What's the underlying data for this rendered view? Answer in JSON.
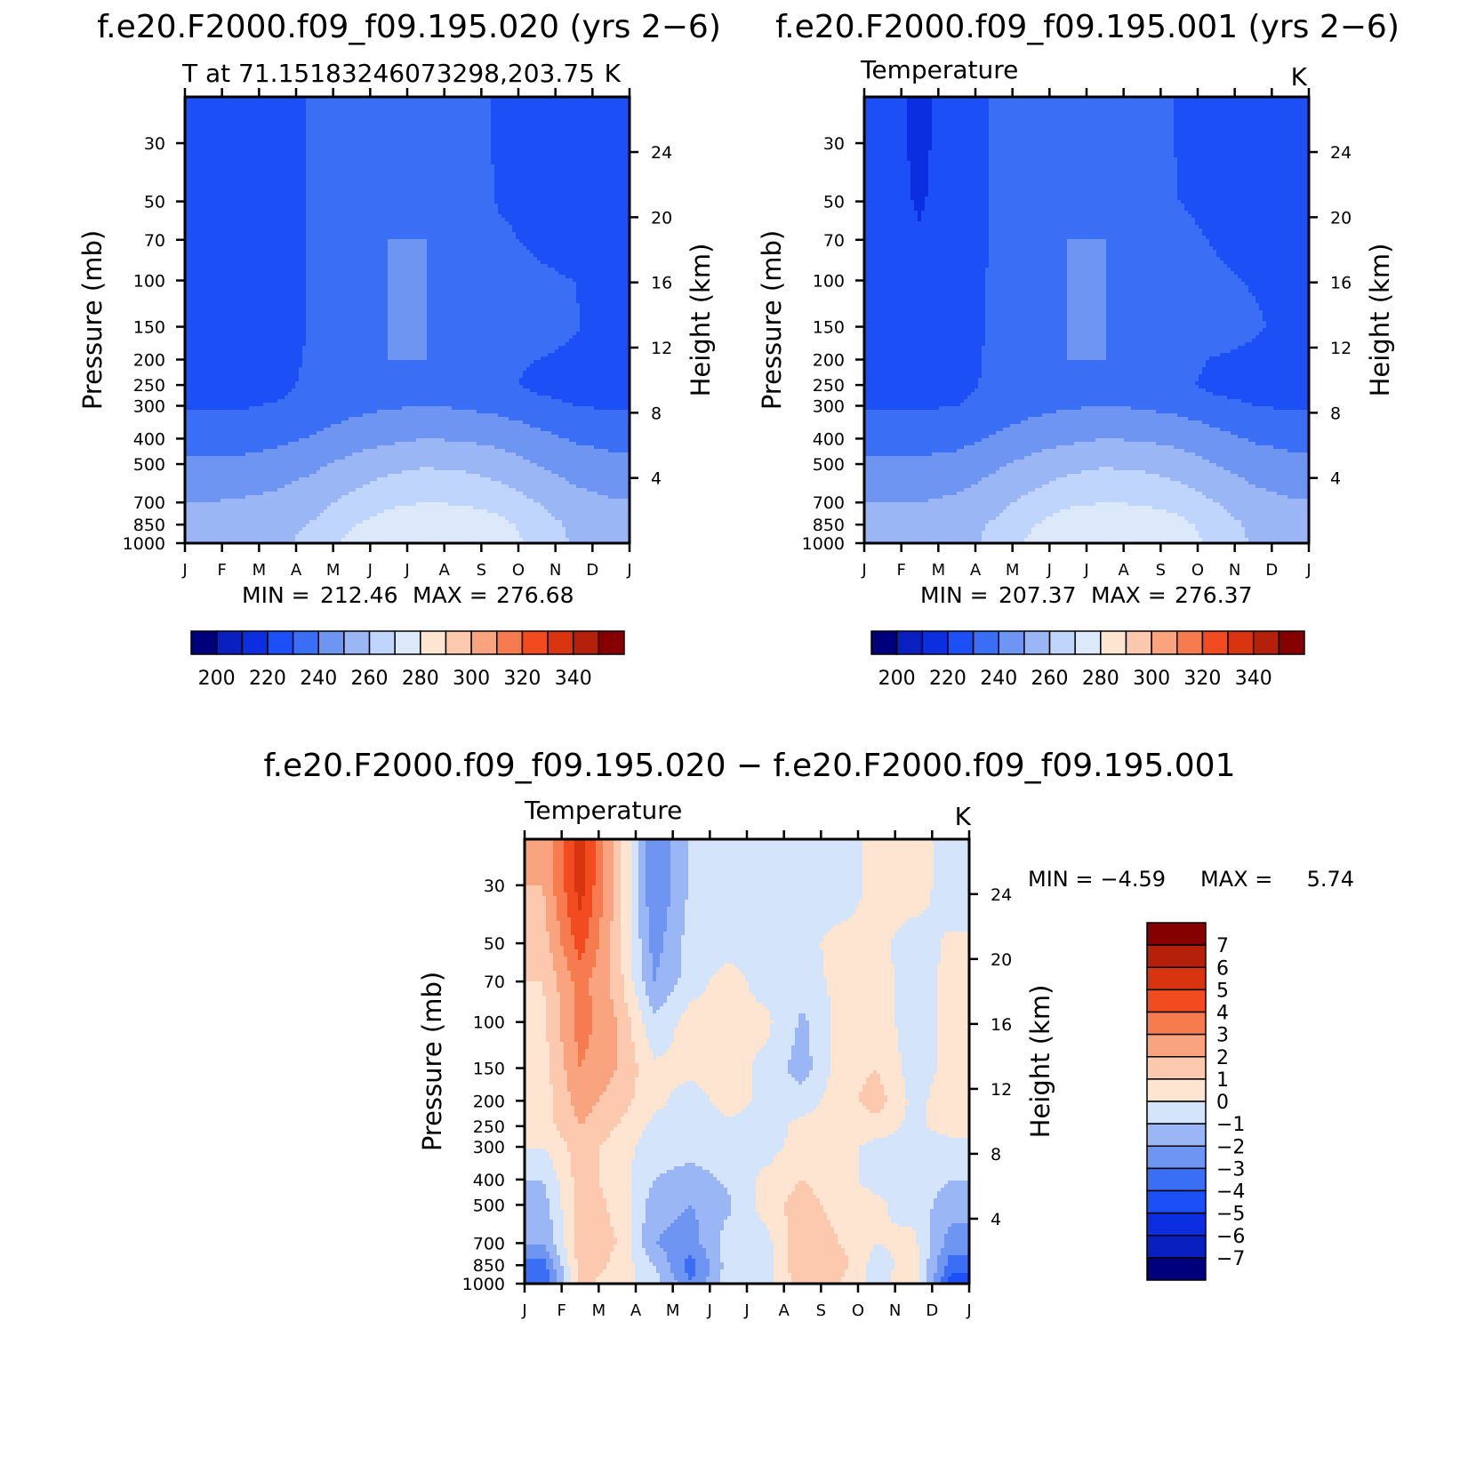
{
  "figure": {
    "panels": [
      {
        "id": "a",
        "title": "f.e20.F2000.f09_f09.195.020 (yrs 2−6)",
        "left_label": "T at 71.15183246073298,203.75",
        "right_label": "K",
        "stats": {
          "min_label": "MIN =",
          "min": "212.46",
          "max_label": "MAX =",
          "max": "276.68"
        }
      },
      {
        "id": "b",
        "title": "f.e20.F2000.f09_f09.195.001 (yrs 2−6)",
        "left_label": "Temperature",
        "right_label": "K",
        "stats": {
          "min_label": "MIN =",
          "min": "207.37",
          "max_label": "MAX =",
          "max": "276.37"
        }
      },
      {
        "id": "c",
        "title": "f.e20.F2000.f09_f09.195.020 − f.e20.F2000.f09_f09.195.001",
        "left_label": "Temperature",
        "right_label": "K",
        "stats": {
          "min_label": "MIN =",
          "min": "−4.59",
          "max_label": "MAX =",
          "max": "5.74"
        }
      }
    ]
  },
  "chart_data": [
    {
      "type": "heatmap",
      "subtype": "filled-contour pressure–time section",
      "title": "f.e20.F2000.f09_f09.195.020 (yrs 2−6)",
      "subtitle": "T at 71.15183246073298,203.75",
      "units": "K",
      "ylabel": "Pressure (mb)",
      "y2label": "Height (km)",
      "x_ticks": [
        "J",
        "F",
        "M",
        "A",
        "M",
        "J",
        "J",
        "A",
        "S",
        "O",
        "N",
        "D",
        "J"
      ],
      "y_ticks": [
        30,
        50,
        70,
        100,
        150,
        200,
        250,
        300,
        400,
        500,
        700,
        850,
        1000
      ],
      "y2_ticks": [
        24,
        20,
        16,
        12,
        8,
        4
      ],
      "ylim": [
        1000,
        20
      ],
      "y_scale": "log",
      "colorbar": {
        "orientation": "horizontal",
        "position": "bottom",
        "labels": [
          200,
          220,
          240,
          260,
          280,
          300,
          320,
          340
        ],
        "levels": [
          195,
          200,
          205,
          210,
          215,
          220,
          225,
          230,
          235,
          240,
          245,
          250,
          255,
          260,
          265,
          270,
          275,
          280,
          285,
          290,
          295,
          300,
          305,
          310,
          315,
          320,
          325,
          330,
          335,
          340,
          345
        ]
      },
      "min": 212.46,
      "max": 276.68,
      "month_columns": [
        "J",
        "F",
        "M",
        "A",
        "M",
        "J",
        "J",
        "A",
        "S",
        "O",
        "N",
        "D"
      ],
      "pressure_rows": [
        1000,
        850,
        700,
        500,
        400,
        300,
        250,
        200,
        150,
        100,
        70,
        50,
        30
      ],
      "values": [
        [
          250,
          251,
          253,
          258,
          268,
          273,
          275,
          275,
          271,
          262,
          254,
          251
        ],
        [
          249,
          250,
          252,
          256,
          264,
          270,
          273,
          272,
          268,
          260,
          253,
          250
        ],
        [
          245,
          246,
          248,
          252,
          258,
          263,
          265,
          264,
          261,
          255,
          249,
          246
        ],
        [
          237,
          237,
          239,
          243,
          248,
          252,
          254,
          253,
          250,
          245,
          240,
          238
        ],
        [
          231,
          231,
          233,
          236,
          240,
          243,
          245,
          244,
          242,
          238,
          234,
          232
        ],
        [
          224,
          224,
          226,
          229,
          232,
          234,
          235,
          234,
          232,
          229,
          225,
          224
        ],
        [
          222,
          222,
          222,
          228,
          233,
          234,
          234,
          233,
          228,
          222,
          221,
          221
        ],
        [
          221,
          221,
          221,
          227,
          234,
          235,
          235,
          234,
          228,
          225,
          222,
          221
        ],
        [
          221,
          221,
          221,
          226,
          234,
          235,
          235,
          234,
          233,
          232,
          226,
          221
        ],
        [
          220,
          221,
          221,
          226,
          234,
          235,
          235,
          234,
          230,
          227,
          225,
          221
        ],
        [
          220,
          220,
          221,
          226,
          233,
          235,
          235,
          234,
          227,
          223,
          221,
          220
        ],
        [
          220,
          220,
          221,
          226,
          233,
          234,
          234,
          233,
          224,
          222,
          221,
          220
        ],
        [
          220,
          220,
          221,
          226,
          232,
          233,
          233,
          231,
          223,
          222,
          221,
          220
        ]
      ]
    },
    {
      "type": "heatmap",
      "subtype": "filled-contour pressure–time section",
      "title": "f.e20.F2000.f09_f09.195.001 (yrs 2−6)",
      "subtitle": "Temperature",
      "units": "K",
      "ylabel": "Pressure (mb)",
      "y2label": "Height (km)",
      "x_ticks": [
        "J",
        "F",
        "M",
        "A",
        "M",
        "J",
        "J",
        "A",
        "S",
        "O",
        "N",
        "D",
        "J"
      ],
      "y_ticks": [
        30,
        50,
        70,
        100,
        150,
        200,
        250,
        300,
        400,
        500,
        700,
        850,
        1000
      ],
      "y2_ticks": [
        24,
        20,
        16,
        12,
        8,
        4
      ],
      "ylim": [
        1000,
        20
      ],
      "y_scale": "log",
      "colorbar": {
        "orientation": "horizontal",
        "position": "bottom",
        "labels": [
          200,
          220,
          240,
          260,
          280,
          300,
          320,
          340
        ],
        "levels": [
          195,
          200,
          205,
          210,
          215,
          220,
          225,
          230,
          235,
          240,
          245,
          250,
          255,
          260,
          265,
          270,
          275,
          280,
          285,
          290,
          295,
          300,
          305,
          310,
          315,
          320,
          325,
          330,
          335,
          340,
          345
        ]
      },
      "min": 207.37,
      "max": 276.37,
      "month_columns": [
        "J",
        "F",
        "M",
        "A",
        "M",
        "J",
        "J",
        "A",
        "S",
        "O",
        "N",
        "D"
      ],
      "pressure_rows": [
        1000,
        850,
        700,
        500,
        400,
        300,
        250,
        200,
        150,
        100,
        70,
        50,
        30
      ],
      "values": [
        [
          250,
          250,
          252,
          257,
          267,
          273,
          275,
          274,
          270,
          262,
          254,
          251
        ],
        [
          249,
          249,
          251,
          256,
          264,
          271,
          273,
          272,
          268,
          260,
          253,
          250
        ],
        [
          245,
          245,
          247,
          252,
          258,
          263,
          265,
          264,
          261,
          255,
          249,
          246
        ],
        [
          237,
          237,
          238,
          243,
          248,
          252,
          254,
          253,
          250,
          245,
          240,
          238
        ],
        [
          231,
          231,
          232,
          236,
          240,
          243,
          245,
          244,
          242,
          238,
          234,
          232
        ],
        [
          224,
          224,
          225,
          229,
          232,
          234,
          235,
          234,
          232,
          229,
          225,
          224
        ],
        [
          222,
          222,
          222,
          227,
          233,
          234,
          234,
          233,
          228,
          221,
          221,
          221
        ],
        [
          221,
          221,
          221,
          227,
          234,
          235,
          235,
          234,
          229,
          224,
          222,
          221
        ],
        [
          221,
          220,
          221,
          226,
          234,
          235,
          235,
          234,
          233,
          232,
          227,
          221
        ],
        [
          220,
          219,
          221,
          226,
          234,
          235,
          235,
          234,
          230,
          227,
          224,
          221
        ],
        [
          219,
          216,
          220,
          226,
          233,
          235,
          235,
          234,
          228,
          224,
          221,
          220
        ],
        [
          219,
          214,
          220,
          226,
          233,
          234,
          234,
          233,
          225,
          222,
          221,
          220
        ],
        [
          219,
          213,
          220,
          226,
          232,
          233,
          233,
          231,
          224,
          222,
          221,
          220
        ]
      ]
    },
    {
      "type": "heatmap",
      "subtype": "filled-contour pressure–time section (difference)",
      "title": "f.e20.F2000.f09_f09.195.020 − f.e20.F2000.f09_f09.195.001",
      "subtitle": "Temperature",
      "units": "K",
      "ylabel": "Pressure (mb)",
      "y2label": "Height (km)",
      "x_ticks": [
        "J",
        "F",
        "M",
        "A",
        "M",
        "J",
        "J",
        "A",
        "S",
        "O",
        "N",
        "D",
        "J"
      ],
      "y_ticks": [
        30,
        50,
        70,
        100,
        150,
        200,
        250,
        300,
        400,
        500,
        700,
        850,
        1000
      ],
      "y2_ticks": [
        24,
        20,
        16,
        12,
        8,
        4
      ],
      "ylim": [
        1000,
        20
      ],
      "y_scale": "log",
      "colorbar": {
        "orientation": "vertical",
        "position": "right",
        "labels": [
          7,
          6,
          5,
          4,
          3,
          2,
          1,
          0,
          -1,
          -2,
          -3,
          -4,
          -5,
          -6,
          -7
        ],
        "levels": [
          -8,
          -7,
          -6,
          -5,
          -4,
          -3,
          -2,
          -1,
          0,
          1,
          2,
          3,
          4,
          5,
          6,
          7,
          8
        ]
      },
      "min": -4.59,
      "max": 5.74,
      "month_columns": [
        "J",
        "F",
        "M",
        "A",
        "M",
        "J",
        "J",
        "A",
        "S",
        "O",
        "N",
        "D"
      ],
      "pressure_rows": [
        1000,
        850,
        700,
        500,
        400,
        300,
        250,
        200,
        150,
        100,
        70,
        50,
        30
      ],
      "values": [
        [
          -4.0,
          1.3,
          0.5,
          -0.5,
          -3.0,
          -0.5,
          -0.5,
          1.5,
          1.0,
          -0.5,
          1.0,
          -4.5
        ],
        [
          -3.5,
          1.5,
          0.8,
          -1.0,
          -3.5,
          -0.5,
          -0.5,
          2.0,
          1.5,
          -0.5,
          0.5,
          -3.5
        ],
        [
          -2.0,
          1.5,
          1.0,
          -2.0,
          -2.5,
          -0.5,
          -0.5,
          2.0,
          1.0,
          0.0,
          0.3,
          -2.5
        ],
        [
          -1.5,
          1.5,
          0.8,
          -1.5,
          -2.0,
          -1.2,
          0.5,
          1.5,
          0.5,
          0.2,
          -0.5,
          -1.5
        ],
        [
          -1.0,
          1.5,
          0.5,
          -1.0,
          -1.5,
          -0.8,
          0.3,
          1.0,
          0.3,
          -0.3,
          -0.5,
          -1.0
        ],
        [
          0.0,
          1.5,
          0.5,
          -0.5,
          -0.5,
          -0.5,
          -0.5,
          0.5,
          0.3,
          -0.3,
          -0.3,
          -0.5
        ],
        [
          0.5,
          2.0,
          1.0,
          -0.3,
          -0.5,
          -0.3,
          -0.5,
          0.3,
          0.5,
          0.5,
          -0.3,
          0.5
        ],
        [
          0.5,
          2.5,
          1.5,
          0.3,
          -0.5,
          0.5,
          -0.3,
          -0.5,
          0.5,
          1.5,
          -0.3,
          0.5
        ],
        [
          0.5,
          3.0,
          2.0,
          0.2,
          0.3,
          0.5,
          -0.3,
          -1.5,
          0.5,
          1.0,
          -0.5,
          0.3
        ],
        [
          0.8,
          3.5,
          2.0,
          -0.8,
          0.5,
          0.3,
          0.3,
          -1.2,
          0.3,
          0.5,
          -0.5,
          0.3
        ],
        [
          1.0,
          3.5,
          1.5,
          -2.0,
          -0.5,
          0.5,
          -0.5,
          -0.5,
          0.3,
          0.5,
          -0.5,
          0.3
        ],
        [
          1.5,
          4.5,
          1.5,
          -2.5,
          -0.5,
          -0.5,
          -0.5,
          -0.5,
          0.5,
          0.5,
          -0.8,
          0.3
        ],
        [
          2.0,
          5.5,
          1.5,
          -3.0,
          -0.8,
          -0.5,
          -0.5,
          -0.5,
          -1.0,
          0.5,
          1.0,
          -1.0
        ]
      ]
    }
  ]
}
